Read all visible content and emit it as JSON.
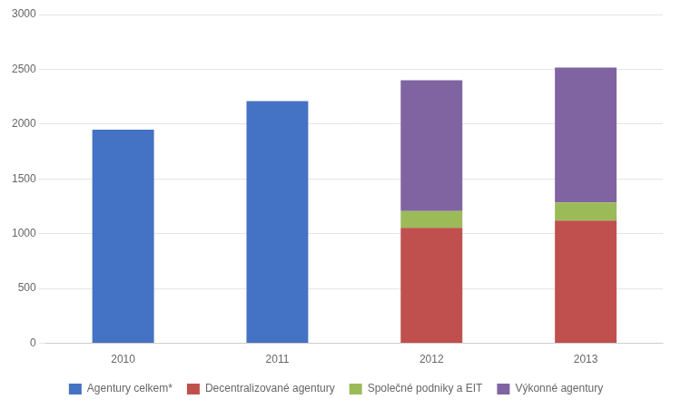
{
  "chart_data": {
    "type": "bar",
    "categories": [
      "2010",
      "2011",
      "2012",
      "2013"
    ],
    "series": [
      {
        "name": "Agentury celkem*",
        "color": "#4472C4",
        "values": [
          1950,
          2210,
          0,
          0
        ]
      },
      {
        "name": "Decentralizované agentury",
        "color": "#C0504D",
        "values": [
          0,
          0,
          1054,
          1120
        ]
      },
      {
        "name": "Společné podniky a EIT",
        "color": "#9BBB59",
        "values": [
          0,
          0,
          152,
          165
        ]
      },
      {
        "name": "Výkonné agentury",
        "color": "#8064A2",
        "values": [
          0,
          0,
          1194,
          1230
        ]
      }
    ],
    "stacked": true,
    "ylim": [
      0,
      3000
    ],
    "yticks": [
      0,
      500,
      1000,
      1500,
      2000,
      2500,
      3000
    ],
    "grid": true,
    "legend": "bottom"
  }
}
